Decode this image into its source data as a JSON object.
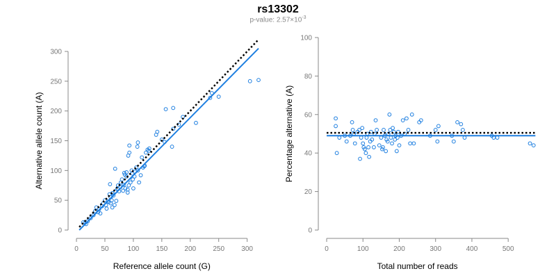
{
  "title": "rs13302",
  "subtitle": {
    "prefix": "p-value: 2.57×10",
    "exponent": "-3"
  },
  "colors": {
    "accent": "#1e7fe0",
    "reference_line": "#000000",
    "axis": "#888888",
    "tick_text": "#777777"
  },
  "chart_data": [
    {
      "type": "scatter",
      "xlabel": "Reference allele count (G)",
      "ylabel": "Alternative allele count (A)",
      "xlim": [
        0,
        320
      ],
      "ylim": [
        0,
        300
      ],
      "xticks": [
        0,
        50,
        100,
        150,
        200,
        250,
        300
      ],
      "yticks": [
        0,
        50,
        100,
        150,
        200,
        250,
        300
      ],
      "grid": false,
      "points": [
        [
          12,
          13
        ],
        [
          15,
          12
        ],
        [
          17,
          10
        ],
        [
          20,
          15
        ],
        [
          25,
          20
        ],
        [
          30,
          25
        ],
        [
          33,
          32
        ],
        [
          35,
          38
        ],
        [
          38,
          30
        ],
        [
          40,
          35
        ],
        [
          42,
          28
        ],
        [
          45,
          40
        ],
        [
          47,
          45
        ],
        [
          50,
          50
        ],
        [
          52,
          42
        ],
        [
          53,
          36
        ],
        [
          55,
          48
        ],
        [
          57,
          47
        ],
        [
          58,
          60
        ],
        [
          59,
          77
        ],
        [
          60,
          45
        ],
        [
          60,
          55
        ],
        [
          62,
          50
        ],
        [
          63,
          38
        ],
        [
          63,
          62
        ],
        [
          65,
          58
        ],
        [
          67,
          42
        ],
        [
          68,
          65
        ],
        [
          68,
          103
        ],
        [
          70,
          49
        ],
        [
          72,
          70
        ],
        [
          73,
          75
        ],
        [
          75,
          65
        ],
        [
          77,
          72
        ],
        [
          78,
          80
        ],
        [
          80,
          85
        ],
        [
          82,
          66
        ],
        [
          83,
          76
        ],
        [
          84,
          96
        ],
        [
          85,
          93
        ],
        [
          86,
          70
        ],
        [
          88,
          97
        ],
        [
          88,
          90
        ],
        [
          90,
          68
        ],
        [
          90,
          63
        ],
        [
          91,
          125
        ],
        [
          92,
          75
        ],
        [
          93,
          130
        ],
        [
          93,
          142
        ],
        [
          95,
          80
        ],
        [
          97,
          100
        ],
        [
          98,
          95
        ],
        [
          99,
          85
        ],
        [
          100,
          70
        ],
        [
          102,
          90
        ],
        [
          103,
          98
        ],
        [
          105,
          105
        ],
        [
          107,
          140
        ],
        [
          108,
          100
        ],
        [
          108,
          147
        ],
        [
          110,
          80
        ],
        [
          113,
          92
        ],
        [
          115,
          122
        ],
        [
          117,
          105
        ],
        [
          119,
          107
        ],
        [
          120,
          108
        ],
        [
          122,
          130
        ],
        [
          125,
          135
        ],
        [
          127,
          133
        ],
        [
          128,
          137
        ],
        [
          140,
          160
        ],
        [
          142,
          165
        ],
        [
          150,
          152
        ],
        [
          155,
          148
        ],
        [
          157,
          203
        ],
        [
          168,
          140
        ],
        [
          170,
          205
        ],
        [
          170,
          170
        ],
        [
          180,
          177
        ],
        [
          187,
          190
        ],
        [
          210,
          180
        ],
        [
          235,
          222
        ],
        [
          238,
          230
        ],
        [
          250,
          224
        ],
        [
          305,
          250
        ],
        [
          320,
          252
        ]
      ],
      "fit_line": {
        "x": [
          5,
          320
        ],
        "y": [
          0,
          305
        ]
      },
      "identity_line": {
        "x": [
          5,
          320
        ],
        "y": [
          5,
          320
        ]
      }
    },
    {
      "type": "scatter",
      "xlabel": "Total number of reads",
      "ylabel": "Percentage alternative (A)",
      "xlim": [
        0,
        580
      ],
      "ylim": [
        0,
        100
      ],
      "xticks": [
        0,
        100,
        200,
        300,
        400,
        500
      ],
      "yticks": [
        0,
        20,
        40,
        60,
        80,
        100
      ],
      "grid": false,
      "points": [
        [
          25,
          58
        ],
        [
          25,
          54
        ],
        [
          28,
          40
        ],
        [
          35,
          48
        ],
        [
          50,
          49
        ],
        [
          55,
          46
        ],
        [
          65,
          49
        ],
        [
          70,
          56
        ],
        [
          72,
          52
        ],
        [
          75,
          50
        ],
        [
          78,
          45
        ],
        [
          85,
          51
        ],
        [
          90,
          52
        ],
        [
          92,
          37
        ],
        [
          95,
          48
        ],
        [
          98,
          53
        ],
        [
          100,
          45
        ],
        [
          102,
          43
        ],
        [
          105,
          42
        ],
        [
          108,
          40
        ],
        [
          110,
          48
        ],
        [
          112,
          50
        ],
        [
          115,
          43
        ],
        [
          117,
          38
        ],
        [
          120,
          46
        ],
        [
          122,
          51
        ],
        [
          125,
          47
        ],
        [
          130,
          43
        ],
        [
          132,
          50
        ],
        [
          135,
          57
        ],
        [
          138,
          52
        ],
        [
          145,
          44
        ],
        [
          150,
          48
        ],
        [
          153,
          42
        ],
        [
          155,
          43
        ],
        [
          157,
          52
        ],
        [
          160,
          49
        ],
        [
          163,
          41
        ],
        [
          165,
          47
        ],
        [
          168,
          46
        ],
        [
          170,
          50
        ],
        [
          173,
          60
        ],
        [
          175,
          52
        ],
        [
          177,
          48
        ],
        [
          180,
          45
        ],
        [
          182,
          53
        ],
        [
          185,
          51
        ],
        [
          188,
          47
        ],
        [
          190,
          49
        ],
        [
          193,
          41
        ],
        [
          195,
          48
        ],
        [
          197,
          51
        ],
        [
          200,
          44
        ],
        [
          205,
          49
        ],
        [
          210,
          57
        ],
        [
          215,
          50
        ],
        [
          220,
          58
        ],
        [
          225,
          52
        ],
        [
          230,
          45
        ],
        [
          235,
          60
        ],
        [
          240,
          45
        ],
        [
          255,
          56
        ],
        [
          260,
          57
        ],
        [
          285,
          49
        ],
        [
          300,
          52
        ],
        [
          305,
          46
        ],
        [
          308,
          54
        ],
        [
          345,
          49
        ],
        [
          350,
          46
        ],
        [
          360,
          56
        ],
        [
          370,
          55
        ],
        [
          375,
          52
        ],
        [
          380,
          48
        ],
        [
          455,
          49
        ],
        [
          460,
          48
        ],
        [
          470,
          48
        ],
        [
          560,
          45
        ],
        [
          570,
          44
        ]
      ],
      "fit_line": {
        "x": [
          0,
          575
        ],
        "y": [
          49,
          49
        ]
      },
      "identity_line": {
        "x": [
          0,
          575
        ],
        "y": [
          50.5,
          50.5
        ]
      }
    }
  ]
}
